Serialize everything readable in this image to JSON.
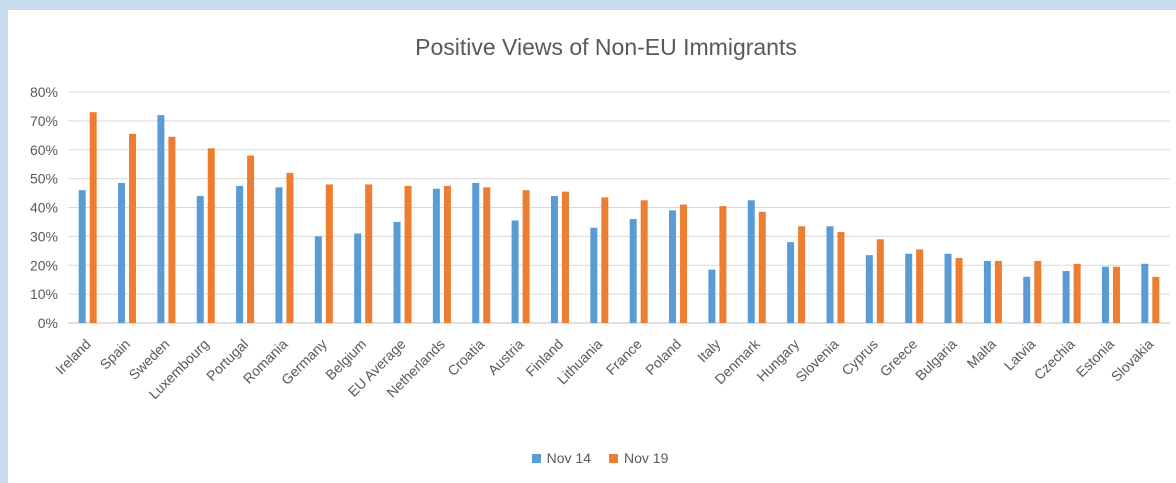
{
  "chart_data": {
    "type": "bar",
    "title": "Positive Views of Non-EU Immigrants",
    "xlabel": "",
    "ylabel": "",
    "ylim": [
      0,
      80
    ],
    "yticks": [
      "0%",
      "10%",
      "20%",
      "30%",
      "40%",
      "50%",
      "60%",
      "70%",
      "80%"
    ],
    "grid": true,
    "legend_position": "bottom",
    "categories": [
      "Ireland",
      "Spain",
      "Sweden",
      "Luxembourg",
      "Portugal",
      "Romania",
      "Germany",
      "Belgium",
      "EU Average",
      "Netherlands",
      "Croatia",
      "Austria",
      "Finland",
      "Lithuania",
      "France",
      "Poland",
      "Italy",
      "Denmark",
      "Hungary",
      "Slovenia",
      "Cyprus",
      "Greece",
      "Bulgaria",
      "Malta",
      "Latvia",
      "Czechia",
      "Estonia",
      "Slovakia"
    ],
    "series": [
      {
        "name": "Nov 14",
        "color": "#5b9bd5",
        "values": [
          46,
          48.5,
          72,
          44,
          47.5,
          47,
          30,
          31,
          35,
          46.5,
          48.5,
          35.5,
          44,
          33,
          36,
          39,
          18.5,
          42.5,
          28,
          33.5,
          23.5,
          24,
          24,
          21.5,
          16,
          18,
          19.5,
          20.5
        ]
      },
      {
        "name": "Nov 19",
        "color": "#ed7d31",
        "values": [
          73,
          65.5,
          64.5,
          60.5,
          58,
          52,
          48,
          48,
          47.5,
          47.5,
          47,
          46,
          45.5,
          43.5,
          42.5,
          41,
          40.5,
          38.5,
          33.5,
          31.5,
          29,
          25.5,
          22.5,
          21.5,
          21.5,
          20.5,
          19.5,
          16
        ]
      }
    ]
  }
}
